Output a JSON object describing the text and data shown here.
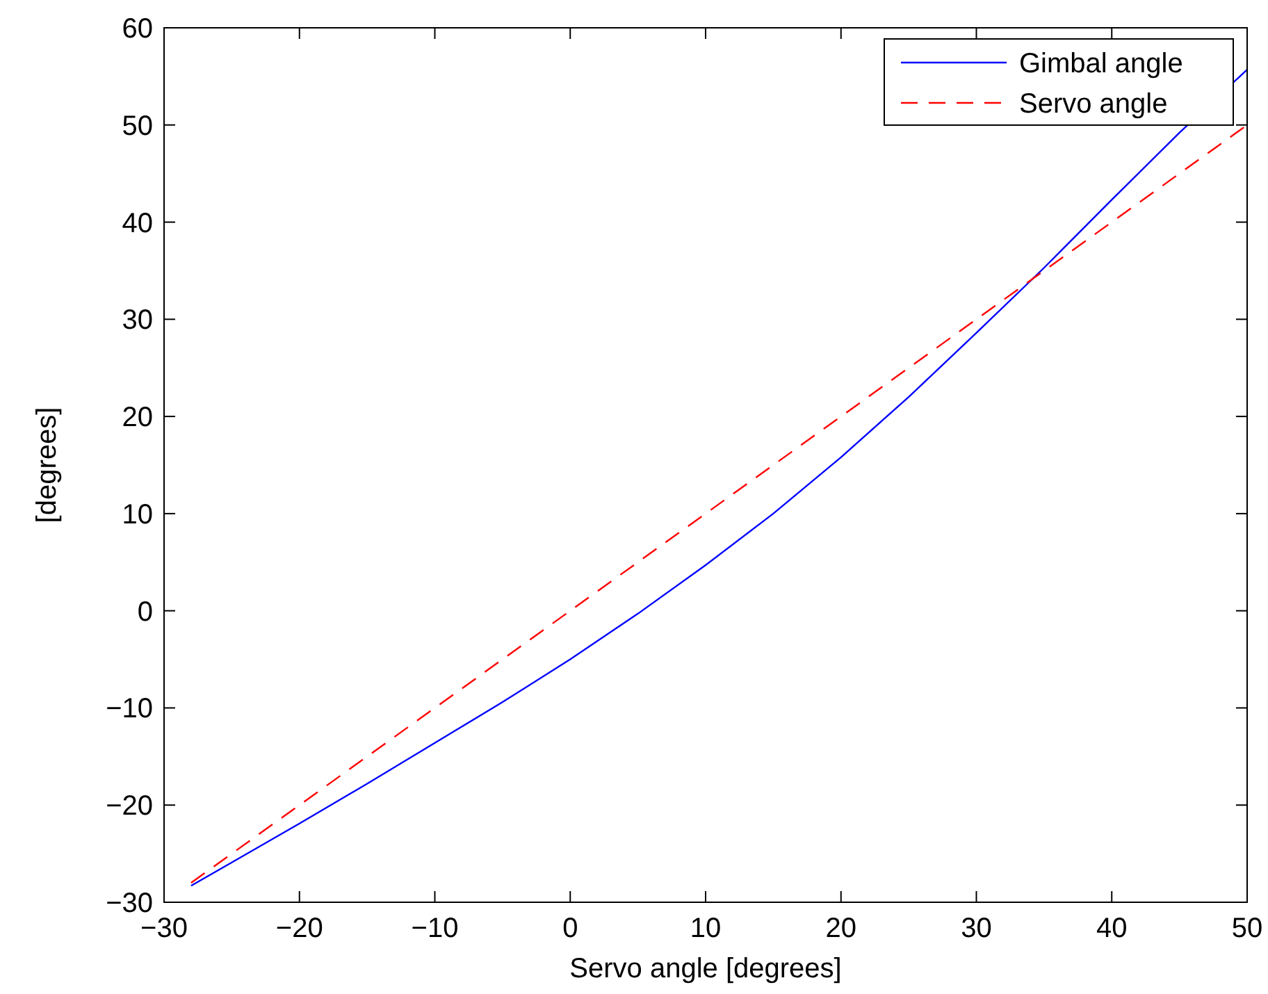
{
  "chart_data": {
    "type": "line",
    "xlabel": "Servo angle [degrees]",
    "ylabel": "[degrees]",
    "xlim": [
      -30,
      50
    ],
    "xticks": [
      -30,
      -20,
      -10,
      0,
      10,
      20,
      30,
      40,
      50
    ],
    "ylim": [
      -30,
      60
    ],
    "yticks": [
      -30,
      -20,
      -10,
      0,
      10,
      20,
      30,
      40,
      50,
      60
    ],
    "grid": false,
    "legend": "top right",
    "series": [
      {
        "name": "Gimbal angle",
        "color": "#0000ff",
        "line_style": "solid",
        "x": [
          -28,
          -25,
          -20,
          -15,
          -10,
          -5,
          0,
          5,
          10,
          15,
          20,
          25,
          30,
          35,
          40,
          45,
          50
        ],
        "values": [
          -28.3,
          -25.9,
          -21.9,
          -17.8,
          -13.6,
          -9.4,
          -5.0,
          -0.3,
          4.7,
          10.0,
          15.8,
          22.0,
          28.6,
          35.3,
          42.3,
          49.2,
          55.7
        ]
      },
      {
        "name": "Servo angle",
        "color": "#ff0000",
        "line_style": "dashed",
        "x": [
          -28,
          50
        ],
        "values": [
          -28,
          50
        ]
      }
    ]
  }
}
